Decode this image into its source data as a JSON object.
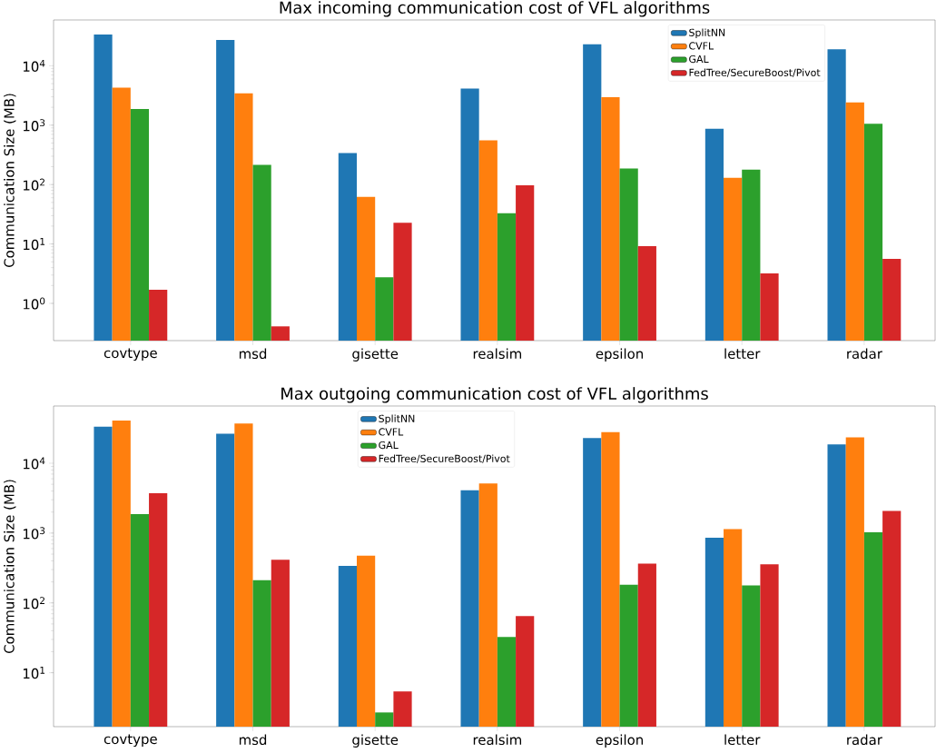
{
  "chart_data": [
    {
      "type": "bar",
      "title": "Max incoming communication cost of VFL algorithms",
      "ylabel": "Communication Size (MB)",
      "categories": [
        "covtype",
        "msd",
        "gisette",
        "realsim",
        "epsilon",
        "letter",
        "radar"
      ],
      "series": [
        {
          "name": "SplitNN",
          "color": "#1f77b4",
          "values": [
            33500,
            27200,
            340,
            4140,
            23000,
            868,
            18900
          ]
        },
        {
          "name": "CVFL",
          "color": "#ff7f0e",
          "values": [
            4300,
            3430,
            62,
            556,
            2950,
            130,
            2410
          ]
        },
        {
          "name": "GAL",
          "color": "#2ca02c",
          "values": [
            1870,
            215,
            2.75,
            33,
            186,
            178,
            1060
          ]
        },
        {
          "name": "FedTree/SecureBoost/Pivot",
          "color": "#d62728",
          "values": [
            1.7,
            0.41,
            22.8,
            97,
            9.2,
            3.2,
            5.6
          ]
        }
      ],
      "log": true,
      "ylim": [
        0.236,
        59000
      ],
      "yticks": [
        {
          "value": 1,
          "label": "10$^{0}$"
        },
        {
          "value": 10,
          "label": "10$^{1}$"
        },
        {
          "value": 100,
          "label": "10$^{2}$"
        },
        {
          "value": 1000,
          "label": "10$^{3}$"
        },
        {
          "value": 10000,
          "label": "10$^{4}$"
        }
      ],
      "legend": "top right"
    },
    {
      "type": "bar",
      "title": "Max outgoing communication cost of VFL algorithms",
      "ylabel": "Communication Size (MB)",
      "categories": [
        "covtype",
        "msd",
        "gisette",
        "realsim",
        "epsilon",
        "letter",
        "radar"
      ],
      "series": [
        {
          "name": "SplitNN",
          "color": "#1f77b4",
          "values": [
            33500,
            26400,
            340,
            4110,
            22900,
            855,
            18600
          ]
        },
        {
          "name": "CVFL",
          "color": "#ff7f0e",
          "values": [
            40900,
            37100,
            474,
            5120,
            28000,
            1140,
            23400
          ]
        },
        {
          "name": "GAL",
          "color": "#2ca02c",
          "values": [
            1870,
            211,
            2.7,
            32.5,
            182,
            178,
            1030
          ]
        },
        {
          "name": "FedTree/SecureBoost/Pivot",
          "color": "#d62728",
          "values": [
            3720,
            416,
            5.4,
            65,
            366,
            358,
            2080
          ]
        }
      ],
      "log": true,
      "ylim": [
        1.69,
        66000
      ],
      "yticks": [
        {
          "value": 10,
          "label": "10$^{1}$"
        },
        {
          "value": 100,
          "label": "10$^{2}$"
        },
        {
          "value": 1000,
          "label": "10$^{3}$"
        },
        {
          "value": 10000,
          "label": "10$^{4}$"
        }
      ],
      "legend": "top"
    }
  ]
}
